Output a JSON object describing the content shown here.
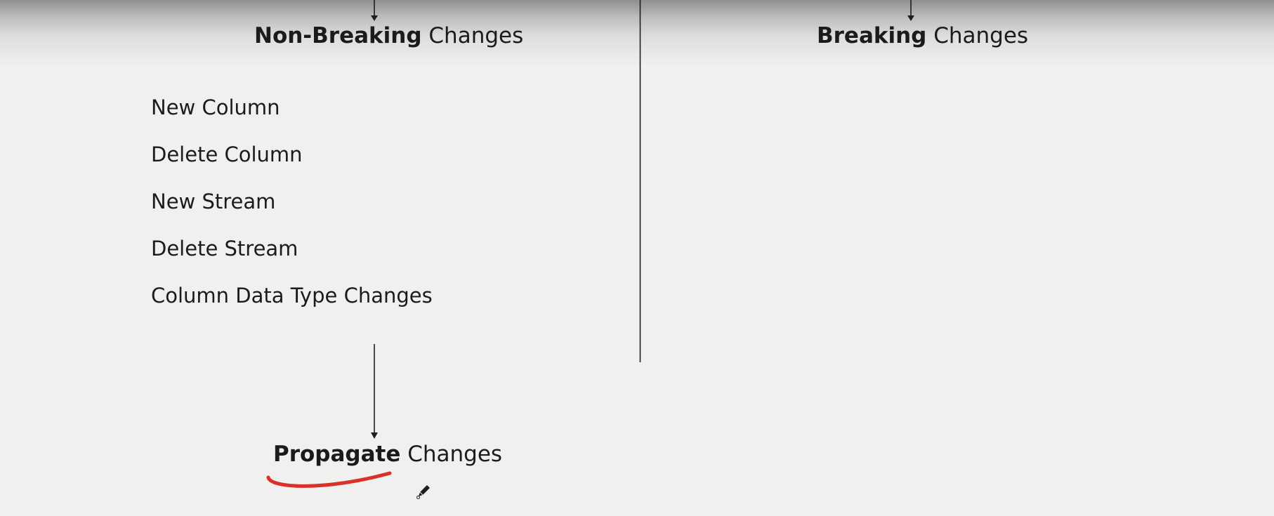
{
  "headings": {
    "non_breaking": {
      "bold": "Non-Breaking",
      "rest": "Changes"
    },
    "breaking": {
      "bold": "Breaking",
      "rest": "Changes"
    },
    "propagate": {
      "bold": "Propagate",
      "rest": "Changes"
    }
  },
  "non_breaking_changes": [
    "New Column",
    "Delete Column",
    "New Stream",
    "Delete Stream",
    "Column Data Type Changes"
  ],
  "colors": {
    "line": "#1e1e1e",
    "annotation_underline": "#d9302a"
  },
  "icons": {
    "cursor": "pencil-icon"
  }
}
